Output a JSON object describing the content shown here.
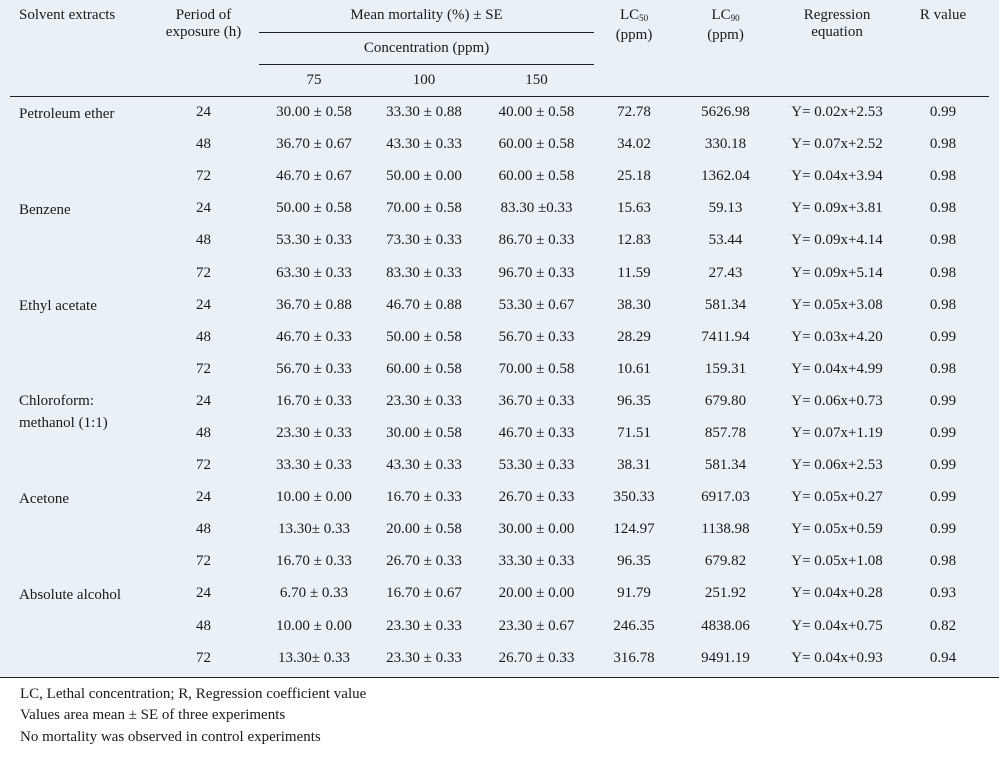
{
  "header": {
    "solvent": "Solvent extracts",
    "period": "Period of exposure (h)",
    "mean_mortality": "Mean mortality (%) ± SE",
    "concentration": "Concentration (ppm)",
    "conc_levels": [
      "75",
      "100",
      "150"
    ],
    "lc50_main": "LC",
    "lc50_sub": "50",
    "lc90_main": "LC",
    "lc90_sub": "90",
    "lc_unit": "(ppm)",
    "regression": "Regression equation",
    "r_value": "R value"
  },
  "groups": [
    {
      "solvent": "Petroleum ether",
      "rows": [
        {
          "period": "24",
          "c75": "30.00 ± 0.58",
          "c100": "33.30 ± 0.88",
          "c150": "40.00 ± 0.58",
          "lc50": "72.78",
          "lc90": "5626.98",
          "equation": "Y= 0.02x+2.53",
          "r": "0.99"
        },
        {
          "period": "48",
          "c75": "36.70 ± 0.67",
          "c100": "43.30 ± 0.33",
          "c150": "60.00 ± 0.58",
          "lc50": "34.02",
          "lc90": "330.18",
          "equation": "Y= 0.07x+2.52",
          "r": "0.98"
        },
        {
          "period": "72",
          "c75": "46.70 ± 0.67",
          "c100": "50.00 ± 0.00",
          "c150": "60.00 ± 0.58",
          "lc50": "25.18",
          "lc90": "1362.04",
          "equation": "Y= 0.04x+3.94",
          "r": "0.98"
        }
      ]
    },
    {
      "solvent": "Benzene",
      "rows": [
        {
          "period": "24",
          "c75": "50.00 ± 0.58",
          "c100": "70.00 ± 0.58",
          "c150": "83.30 ±0.33",
          "lc50": "15.63",
          "lc90": "59.13",
          "equation": "Y= 0.09x+3.81",
          "r": "0.98"
        },
        {
          "period": "48",
          "c75": "53.30 ± 0.33",
          "c100": "73.30 ± 0.33",
          "c150": "86.70 ± 0.33",
          "lc50": "12.83",
          "lc90": "53.44",
          "equation": "Y= 0.09x+4.14",
          "r": "0.98"
        },
        {
          "period": "72",
          "c75": "63.30 ± 0.33",
          "c100": "83.30 ± 0.33",
          "c150": "96.70 ± 0.33",
          "lc50": "11.59",
          "lc90": "27.43",
          "equation": "Y= 0.09x+5.14",
          "r": "0.98"
        }
      ]
    },
    {
      "solvent": "Ethyl acetate",
      "rows": [
        {
          "period": "24",
          "c75": "36.70 ± 0.88",
          "c100": "46.70 ± 0.88",
          "c150": "53.30 ± 0.67",
          "lc50": "38.30",
          "lc90": "581.34",
          "equation": "Y= 0.05x+3.08",
          "r": "0.98"
        },
        {
          "period": "48",
          "c75": "46.70 ± 0.33",
          "c100": "50.00 ± 0.58",
          "c150": "56.70 ± 0.33",
          "lc50": "28.29",
          "lc90": "7411.94",
          "equation": "Y= 0.03x+4.20",
          "r": "0.99"
        },
        {
          "period": "72",
          "c75": "56.70 ± 0.33",
          "c100": "60.00 ± 0.58",
          "c150": "70.00 ± 0.58",
          "lc50": "10.61",
          "lc90": "159.31",
          "equation": "Y= 0.04x+4.99",
          "r": "0.98"
        }
      ]
    },
    {
      "solvent": "Chloroform: methanol (1:1)",
      "rows": [
        {
          "period": "24",
          "c75": "16.70 ± 0.33",
          "c100": "23.30 ± 0.33",
          "c150": "36.70 ± 0.33",
          "lc50": "96.35",
          "lc90": "679.80",
          "equation": "Y= 0.06x+0.73",
          "r": "0.99"
        },
        {
          "period": "48",
          "c75": "23.30 ± 0.33",
          "c100": "30.00 ± 0.58",
          "c150": "46.70 ± 0.33",
          "lc50": "71.51",
          "lc90": "857.78",
          "equation": "Y= 0.07x+1.19",
          "r": "0.99"
        },
        {
          "period": "72",
          "c75": "33.30 ± 0.33",
          "c100": "43.30 ± 0.33",
          "c150": "53.30 ± 0.33",
          "lc50": "38.31",
          "lc90": "581.34",
          "equation": "Y= 0.06x+2.53",
          "r": "0.99"
        }
      ]
    },
    {
      "solvent": "Acetone",
      "rows": [
        {
          "period": "24",
          "c75": "10.00 ± 0.00",
          "c100": "16.70 ± 0.33",
          "c150": "26.70 ± 0.33",
          "lc50": "350.33",
          "lc90": "6917.03",
          "equation": "Y= 0.05x+0.27",
          "r": "0.99"
        },
        {
          "period": "48",
          "c75": "13.30± 0.33",
          "c100": "20.00 ± 0.58",
          "c150": "30.00 ± 0.00",
          "lc50": "124.97",
          "lc90": "1138.98",
          "equation": "Y= 0.05x+0.59",
          "r": "0.99"
        },
        {
          "period": "72",
          "c75": "16.70 ± 0.33",
          "c100": "26.70 ± 0.33",
          "c150": "33.30 ± 0.33",
          "lc50": "96.35",
          "lc90": "679.82",
          "equation": "Y= 0.05x+1.08",
          "r": "0.98"
        }
      ]
    },
    {
      "solvent": "Absolute alcohol",
      "rows": [
        {
          "period": "24",
          "c75": "6.70 ± 0.33",
          "c100": "16.70 ± 0.67",
          "c150": "20.00 ± 0.00",
          "lc50": "91.79",
          "lc90": "251.92",
          "equation": "Y= 0.04x+0.28",
          "r": "0.93"
        },
        {
          "period": "48",
          "c75": "10.00 ± 0.00",
          "c100": "23.30 ± 0.33",
          "c150": "23.30 ± 0.67",
          "lc50": "246.35",
          "lc90": "4838.06",
          "equation": "Y= 0.04x+0.75",
          "r": "0.82"
        },
        {
          "period": "72",
          "c75": "13.30± 0.33",
          "c100": "23.30 ± 0.33",
          "c150": "26.70 ± 0.33",
          "lc50": "316.78",
          "lc90": "9491.19",
          "equation": "Y= 0.04x+0.93",
          "r": "0.94"
        }
      ]
    }
  ],
  "footnotes": [
    "LC, Lethal concentration; R, Regression coefficient value",
    "Values area mean ± SE of three experiments",
    "No mortality was observed in control experiments"
  ]
}
